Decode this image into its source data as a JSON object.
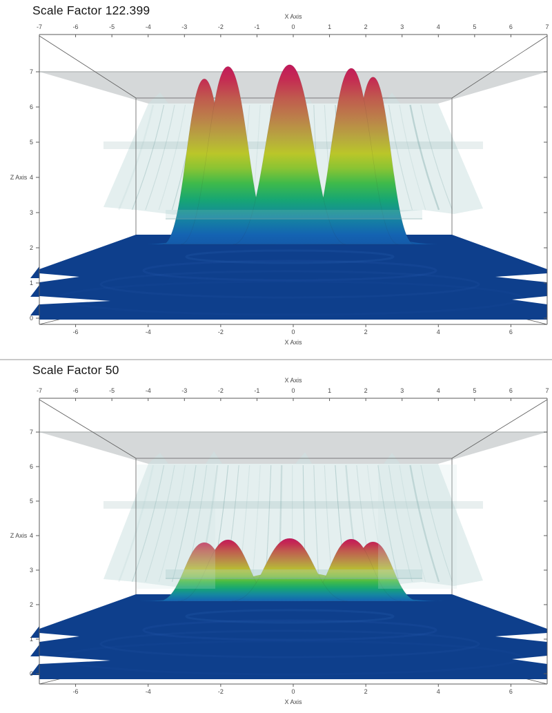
{
  "page": {
    "background": "#ffffff",
    "divider_color": "#c9c9c9"
  },
  "chart_data": [
    {
      "type": "surface_3d",
      "title": "Scale Factor 122.399",
      "scale_factor": 122.399,
      "x_axis": {
        "label": "X Axis",
        "range": [
          -7,
          7
        ],
        "ticks_top": [
          -7,
          -6,
          -5,
          -4,
          -3,
          -2,
          -1,
          0,
          1,
          2,
          3,
          4,
          5,
          6,
          7
        ],
        "ticks_bottom": [
          -6,
          -4,
          -2,
          0,
          2,
          4,
          6
        ]
      },
      "z_axis": {
        "label": "Z Axis",
        "range": [
          0,
          7
        ],
        "ticks": [
          0,
          1,
          2,
          3,
          4,
          5,
          6,
          7
        ]
      },
      "surface": {
        "base_z": 2.1,
        "skirt": {
          "x": -0.05,
          "height": 3.35,
          "half_width": 4.1
        },
        "peaks_draw_order": [
          {
            "x": -2.45,
            "height": 6.8,
            "half_width": 1.15
          },
          {
            "x": 2.2,
            "height": 6.85,
            "half_width": 1.15
          },
          {
            "x": -1.8,
            "height": 7.15,
            "half_width": 1.3
          },
          {
            "x": 1.6,
            "height": 7.1,
            "half_width": 1.3
          },
          {
            "x": -0.1,
            "height": 7.2,
            "half_width": 1.55
          }
        ]
      },
      "clip_plane_z": 7,
      "floor_plane_z": 2.1
    },
    {
      "type": "surface_3d",
      "title": "Scale Factor 50",
      "scale_factor": 50,
      "x_axis": {
        "label": "X Axis",
        "range": [
          -7,
          7
        ],
        "ticks_top": [
          -7,
          -6,
          -5,
          -4,
          -3,
          -2,
          -1,
          0,
          1,
          2,
          3,
          4,
          5,
          6,
          7
        ],
        "ticks_bottom": [
          -6,
          -4,
          -2,
          0,
          2,
          4,
          6
        ]
      },
      "z_axis": {
        "label": "Z Axis",
        "range": [
          0,
          7
        ],
        "ticks": [
          0,
          1,
          2,
          3,
          4,
          5,
          6,
          7
        ]
      },
      "surface": {
        "base_z": 2.1,
        "skirt": {
          "x": -0.05,
          "height": 2.95,
          "half_width": 4.2
        },
        "peaks_draw_order": [
          {
            "x": -2.45,
            "height": 3.8,
            "half_width": 1.28
          },
          {
            "x": 2.2,
            "height": 3.82,
            "half_width": 1.28
          },
          {
            "x": -1.8,
            "height": 3.88,
            "half_width": 1.38
          },
          {
            "x": 1.6,
            "height": 3.9,
            "half_width": 1.38
          },
          {
            "x": -0.1,
            "height": 3.92,
            "half_width": 1.6
          }
        ]
      },
      "clip_plane_z": 7,
      "floor_plane_z": 2.1
    }
  ],
  "style": {
    "colormap": [
      [
        0.0,
        "#c2185b"
      ],
      [
        0.08,
        "#c42c52"
      ],
      [
        0.18,
        "#c05a4e"
      ],
      [
        0.3,
        "#bb8449"
      ],
      [
        0.4,
        "#b7a93e"
      ],
      [
        0.48,
        "#bac629"
      ],
      [
        0.56,
        "#8ac433"
      ],
      [
        0.64,
        "#3fba4a"
      ],
      [
        0.73,
        "#17a673"
      ],
      [
        0.82,
        "#15889f"
      ],
      [
        0.92,
        "#1463b2"
      ],
      [
        1.0,
        "#1356a4"
      ]
    ],
    "floor_color": "#0e3f8c",
    "ripple_color": "#2d62b8",
    "slab_color": "#d2d5d6",
    "slab_edge_color": "#b7bbbc",
    "curtain_color": "#cde2e2",
    "curtain_streak_color": "#6f9e9e",
    "front_band_color": "#9fc6c6",
    "wire_color": "#5a5a5a",
    "tick_text_color": "#474747"
  }
}
